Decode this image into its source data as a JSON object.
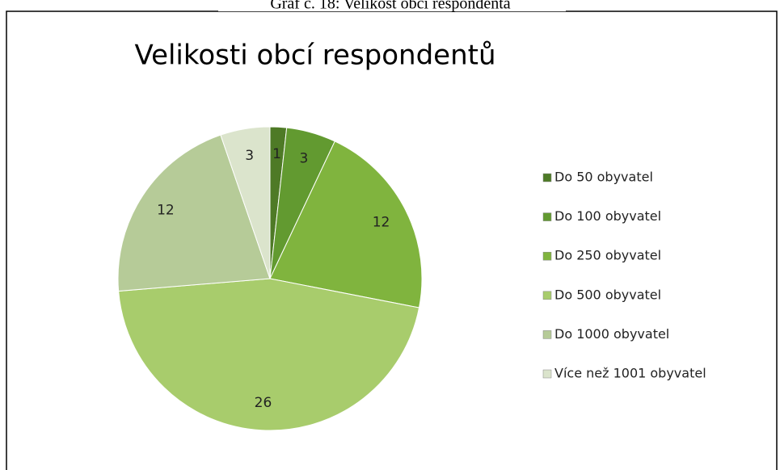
{
  "caption": "Graf č. 18: Velikost obcí respondenta",
  "chart_data": {
    "type": "pie",
    "title": "Velikosti obcí respondentů",
    "categories": [
      "Do 50 obyvatel",
      "Do 100 obyvatel",
      "Do 250 obyvatel",
      "Do 500 obyvatel",
      "Do 1000 obyvatel",
      "Více než 1001 obyvatel"
    ],
    "values": [
      1,
      3,
      12,
      26,
      12,
      3
    ],
    "colors": [
      "#4e7a26",
      "#629a30",
      "#80b43e",
      "#a8cc6c",
      "#b6cb98",
      "#dbe4cc"
    ],
    "legend": "right"
  }
}
